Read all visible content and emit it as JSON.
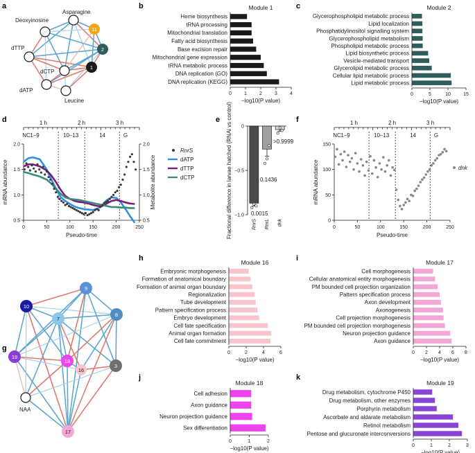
{
  "panels": {
    "a": "a",
    "b": "b",
    "c": "c",
    "d": "d",
    "e": "e",
    "f": "f",
    "g": "g",
    "h": "h",
    "i": "i",
    "j": "j",
    "k": "k"
  },
  "colors": {
    "edge_pos": "#dd7a6c",
    "edge_neg": "#5fa7cf",
    "edge_pos_light": "#eab3a9",
    "edge_neg_light": "#a9d0e6",
    "module1": "#1a1a1a",
    "module2": "#2e5e5b",
    "module11": "#f2a517",
    "module16": "#f7c5cb",
    "module17": "#f4a6d6",
    "module18": "#ee44ee",
    "module19": "#8744d6",
    "rnrs_dot": "#3a3a3a",
    "datp": "#2f8fe0",
    "dttp": "#7a1d7a",
    "dctp": "#3a8a7a",
    "bar_e1": "#4a4a4a",
    "bar_e2": "#a0a0a0",
    "bar_e3": "#d8d8d8"
  },
  "network_a": {
    "nodes": [
      "Asparagine",
      "Deoxyinosine",
      "dTTP",
      "dCTP",
      "dATP",
      "Leucine",
      "11",
      "2",
      "1"
    ]
  },
  "network_g": {
    "nodes": [
      "9",
      "10",
      "7",
      "8",
      "19",
      "18",
      "16",
      "3",
      "NAA",
      "17"
    ]
  },
  "chart_data": [
    {
      "id": "b",
      "type": "bar",
      "orientation": "horizontal",
      "title": "Module 1",
      "categories": [
        "Heme biosynthesis",
        "tRNA processing",
        "Mitochondrial translation",
        "Fatty acid biosynthesis",
        "Base excision repair",
        "Mitochondrial gene expression",
        "tRNA metabolic process",
        "DNA replication (GO)",
        "DNA replication (KEGG)"
      ],
      "values": [
        1.1,
        1.4,
        1.4,
        1.5,
        1.7,
        2.0,
        2.2,
        2.4,
        3.2
      ],
      "xlabel": "−log10(P value)",
      "xlim": [
        0,
        4
      ],
      "xticks": [
        "0",
        "1",
        "2",
        "3",
        "4"
      ]
    },
    {
      "id": "c",
      "type": "bar",
      "orientation": "horizontal",
      "title": "Module 2",
      "categories": [
        "Glycerophospholipid metabolic process",
        "Lipid localization",
        "Phosphatidylinositol signalling system",
        "Glycerophospholipid metabolism",
        "Phospholipid metabolic process",
        "Lipid biosynthetic process",
        "Vesicle-mediated transport",
        "Glycerolipid metabolic process",
        "Cellular lipid metabolic process",
        "Lipid metabolic process"
      ],
      "values": [
        2.8,
        2.9,
        2.9,
        3.0,
        3.0,
        4.5,
        4.8,
        5.5,
        10.8,
        11.0
      ],
      "xlabel": "−log10(P value)",
      "xlim": [
        0,
        15
      ],
      "xticks": [
        "0",
        "5",
        "10",
        "15"
      ]
    },
    {
      "id": "d",
      "type": "line",
      "title": "",
      "stages": [
        "NC",
        "1–9",
        "10–13",
        "14",
        "G"
      ],
      "time_marks": [
        "1 h",
        "2 h",
        "3 h"
      ],
      "xlabel": "Pseudo-time",
      "ylabel": "mRNA abundance",
      "ylabel_right": "Metabolite abundance",
      "xlim": [
        0,
        250
      ],
      "ylim": [
        0.5,
        2.0
      ],
      "ylim_right": [
        0.5,
        2.0
      ],
      "xticks": [
        "0",
        "50",
        "100",
        "150",
        "200",
        "250"
      ],
      "yticks": [
        "0.5",
        "1.0",
        "1.5",
        "2.0"
      ],
      "yticks_right": [
        "0.5",
        "1.0",
        "1.5",
        "2.0"
      ],
      "dividers": [
        75,
        132,
        207
      ],
      "legend": [
        "RnrS",
        "dATP",
        "dTTP",
        "dCTP"
      ],
      "series": [
        {
          "name": "dATP",
          "x": [
            0,
            10,
            20,
            35,
            50,
            60,
            70,
            80,
            90,
            100,
            110,
            120,
            130,
            140,
            150,
            160,
            170,
            180,
            190,
            200,
            210,
            220,
            230,
            240
          ],
          "values": [
            1.65,
            1.72,
            1.74,
            1.7,
            1.5,
            1.3,
            1.12,
            0.96,
            0.88,
            0.82,
            0.77,
            0.74,
            0.72,
            0.71,
            0.7,
            0.73,
            0.8,
            0.9,
            0.95,
            0.94,
            0.85,
            0.72,
            0.58,
            0.45
          ]
        },
        {
          "name": "dTTP",
          "x": [
            0,
            10,
            20,
            35,
            50,
            60,
            70,
            80,
            90,
            100,
            110,
            120,
            130,
            140,
            150,
            160,
            170,
            180,
            190,
            200,
            210,
            220,
            230,
            240
          ],
          "values": [
            1.56,
            1.6,
            1.6,
            1.56,
            1.48,
            1.38,
            1.25,
            1.1,
            0.98,
            0.92,
            0.88,
            0.86,
            0.85,
            0.83,
            0.8,
            0.78,
            0.78,
            0.83,
            0.88,
            0.9,
            0.88,
            0.85,
            0.83,
            0.82
          ]
        },
        {
          "name": "dCTP",
          "x": [
            0,
            10,
            20,
            35,
            50,
            60,
            70,
            80,
            90,
            100,
            110,
            120,
            130,
            140,
            150,
            160,
            170,
            180,
            190,
            200,
            210,
            220,
            230,
            240
          ],
          "values": [
            1.45,
            1.43,
            1.4,
            1.36,
            1.3,
            1.22,
            1.12,
            1.02,
            0.95,
            0.92,
            0.91,
            0.9,
            0.88,
            0.86,
            0.84,
            0.82,
            0.8,
            0.78,
            0.76,
            0.76,
            0.75,
            0.75,
            0.74,
            0.74
          ]
        },
        {
          "name": "RnrS",
          "x": [
            2,
            6,
            10,
            14,
            18,
            22,
            26,
            30,
            34,
            38,
            42,
            46,
            50,
            54,
            58,
            62,
            66,
            70,
            74,
            78,
            82,
            86,
            90,
            94,
            98,
            102,
            106,
            110,
            114,
            118,
            122,
            126,
            130,
            134,
            138,
            142,
            146,
            150,
            154,
            158,
            162,
            166,
            170,
            174,
            178,
            182,
            186,
            190,
            194,
            198,
            202,
            206,
            210,
            214,
            218,
            222,
            226,
            230,
            234,
            238,
            242
          ],
          "values": [
            1.5,
            1.62,
            1.55,
            1.48,
            1.58,
            1.52,
            1.46,
            1.6,
            1.5,
            1.44,
            1.55,
            1.4,
            1.46,
            1.35,
            1.3,
            1.22,
            1.12,
            1.05,
            0.96,
            0.92,
            0.88,
            0.85,
            0.8,
            0.82,
            0.78,
            0.76,
            0.74,
            0.72,
            0.7,
            0.68,
            0.66,
            0.64,
            0.62,
            0.64,
            0.6,
            0.62,
            0.64,
            0.66,
            0.7,
            0.72,
            0.7,
            0.76,
            0.8,
            0.84,
            0.86,
            0.88,
            0.92,
            0.96,
            1.0,
            1.05,
            1.08,
            1.15,
            1.2,
            1.3,
            1.4,
            1.55,
            1.65,
            1.75,
            1.8,
            1.65,
            1.5
          ]
        }
      ]
    },
    {
      "id": "e",
      "type": "bar",
      "title": "",
      "categories": [
        "RnrS",
        "RnrL",
        "dnk"
      ],
      "values": [
        -0.87,
        -0.26,
        -0.04
      ],
      "errors": [
        0.03,
        0.08,
        0.02
      ],
      "points": [
        [
          -0.92,
          -0.88,
          -0.9
        ],
        [
          -0.42,
          -0.37,
          -0.22
        ],
        [
          -0.08,
          -0.02,
          -0.05
        ]
      ],
      "labels": [
        "0.0015",
        "0.1436",
        ">0.9999"
      ],
      "ylabel": "Fractional difference in larvae hatched (RNAi vs control)",
      "ylim": [
        -1.0,
        0
      ],
      "yticks": [
        "0",
        "−0.5",
        "−1.0"
      ]
    },
    {
      "id": "f",
      "type": "scatter",
      "title": "",
      "stages": [
        "NC",
        "1–9",
        "10–13",
        "14",
        "G"
      ],
      "time_marks": [
        "1 h",
        "2 h",
        "3 h"
      ],
      "xlabel": "Pseudo-time",
      "ylabel": "mRNA abundance",
      "xlim": [
        0,
        250
      ],
      "ylim": [
        0,
        150
      ],
      "xticks": [
        "0",
        "50",
        "100",
        "150",
        "200",
        "250"
      ],
      "yticks": [
        "0",
        "50",
        "100",
        "150"
      ],
      "dividers": [
        75,
        132,
        207
      ],
      "legend": [
        "dnk"
      ],
      "series": [
        {
          "name": "dnk",
          "x": [
            2,
            6,
            10,
            14,
            18,
            22,
            26,
            30,
            34,
            38,
            42,
            46,
            50,
            54,
            58,
            62,
            66,
            70,
            74,
            78,
            82,
            86,
            90,
            94,
            98,
            102,
            106,
            110,
            114,
            118,
            122,
            126,
            130,
            134,
            138,
            142,
            146,
            150,
            154,
            158,
            162,
            166,
            170,
            174,
            178,
            182,
            186,
            190,
            194,
            198,
            202,
            206,
            210,
            214,
            218,
            222,
            226,
            230,
            234,
            238,
            242
          ],
          "values": [
            125,
            140,
            110,
            130,
            118,
            135,
            105,
            128,
            115,
            122,
            100,
            132,
            112,
            96,
            120,
            108,
            88,
            115,
            98,
            126,
            92,
            118,
            104,
            85,
            112,
            100,
            124,
            96,
            108,
            118,
            88,
            104,
            99,
            60,
            40,
            28,
            22,
            30,
            35,
            42,
            38,
            50,
            48,
            58,
            62,
            68,
            75,
            80,
            84,
            90,
            96,
            100,
            108,
            112,
            118,
            122,
            128,
            130,
            134,
            140,
            136
          ]
        }
      ]
    },
    {
      "id": "h",
      "type": "bar",
      "orientation": "horizontal",
      "title": "Module 16",
      "categories": [
        "Embryonic morphogenesis",
        "Formation of anatomical boundary",
        "Formation of animal organ boundary",
        "Regionalization",
        "Tube development",
        "Pattern specification process",
        "Embryo development",
        "Cell fate specification",
        "Animal organ formation",
        "Cell fate commitment"
      ],
      "values": [
        2.3,
        2.5,
        2.7,
        3.0,
        3.1,
        3.3,
        3.5,
        4.5,
        4.9,
        4.8
      ],
      "xlabel": "−log10(P value)",
      "xlim": [
        0,
        6
      ],
      "xticks": [
        "0",
        "2",
        "4",
        "6"
      ]
    },
    {
      "id": "i",
      "type": "bar",
      "orientation": "horizontal",
      "title": "Module 17",
      "categories": [
        "Cell morphogenesis",
        "Cellular anatomical entity morphogenesis",
        "PM bounded cell projection organization",
        "Pattern specification process",
        "Axon development",
        "Axonogenesis",
        "Cell projection morphogenesis",
        "PM bounded cell projection morphogenesis",
        "Neuron projection guidance",
        "Axon guidance"
      ],
      "values": [
        3.0,
        3.3,
        3.7,
        4.0,
        4.2,
        4.5,
        4.6,
        4.8,
        5.6,
        5.8
      ],
      "xlabel": "−log10(P value)",
      "xlim": [
        0,
        8
      ],
      "xticks": [
        "0",
        "2",
        "4",
        "6",
        "8"
      ]
    },
    {
      "id": "j",
      "type": "bar",
      "orientation": "horizontal",
      "title": "Module 18",
      "categories": [
        "Cell adhesion",
        "Axon guidance",
        "Neuron projection guidance",
        "Sex differentiation"
      ],
      "values": [
        1.1,
        1.1,
        1.15,
        1.85
      ],
      "xlabel": "−log10(P value)",
      "xlim": [
        0,
        2
      ],
      "xticks": [
        "0",
        "1",
        "2"
      ]
    },
    {
      "id": "k",
      "type": "bar",
      "orientation": "horizontal",
      "title": "Module 19",
      "categories": [
        "Drug metabolism, cytochrome P450",
        "Drug metabolism, other enzymes",
        "Porphyrin metabolism",
        "Ascorbate and aldarate metabolism",
        "Retinol metabolism",
        "Pentose and glucuronate interconversions"
      ],
      "values": [
        1.05,
        1.2,
        1.3,
        2.2,
        2.5,
        2.7
      ],
      "xlabel": "−log10(P value)",
      "xlim": [
        0,
        3
      ],
      "xticks": [
        "0",
        "1",
        "2",
        "3"
      ]
    }
  ]
}
